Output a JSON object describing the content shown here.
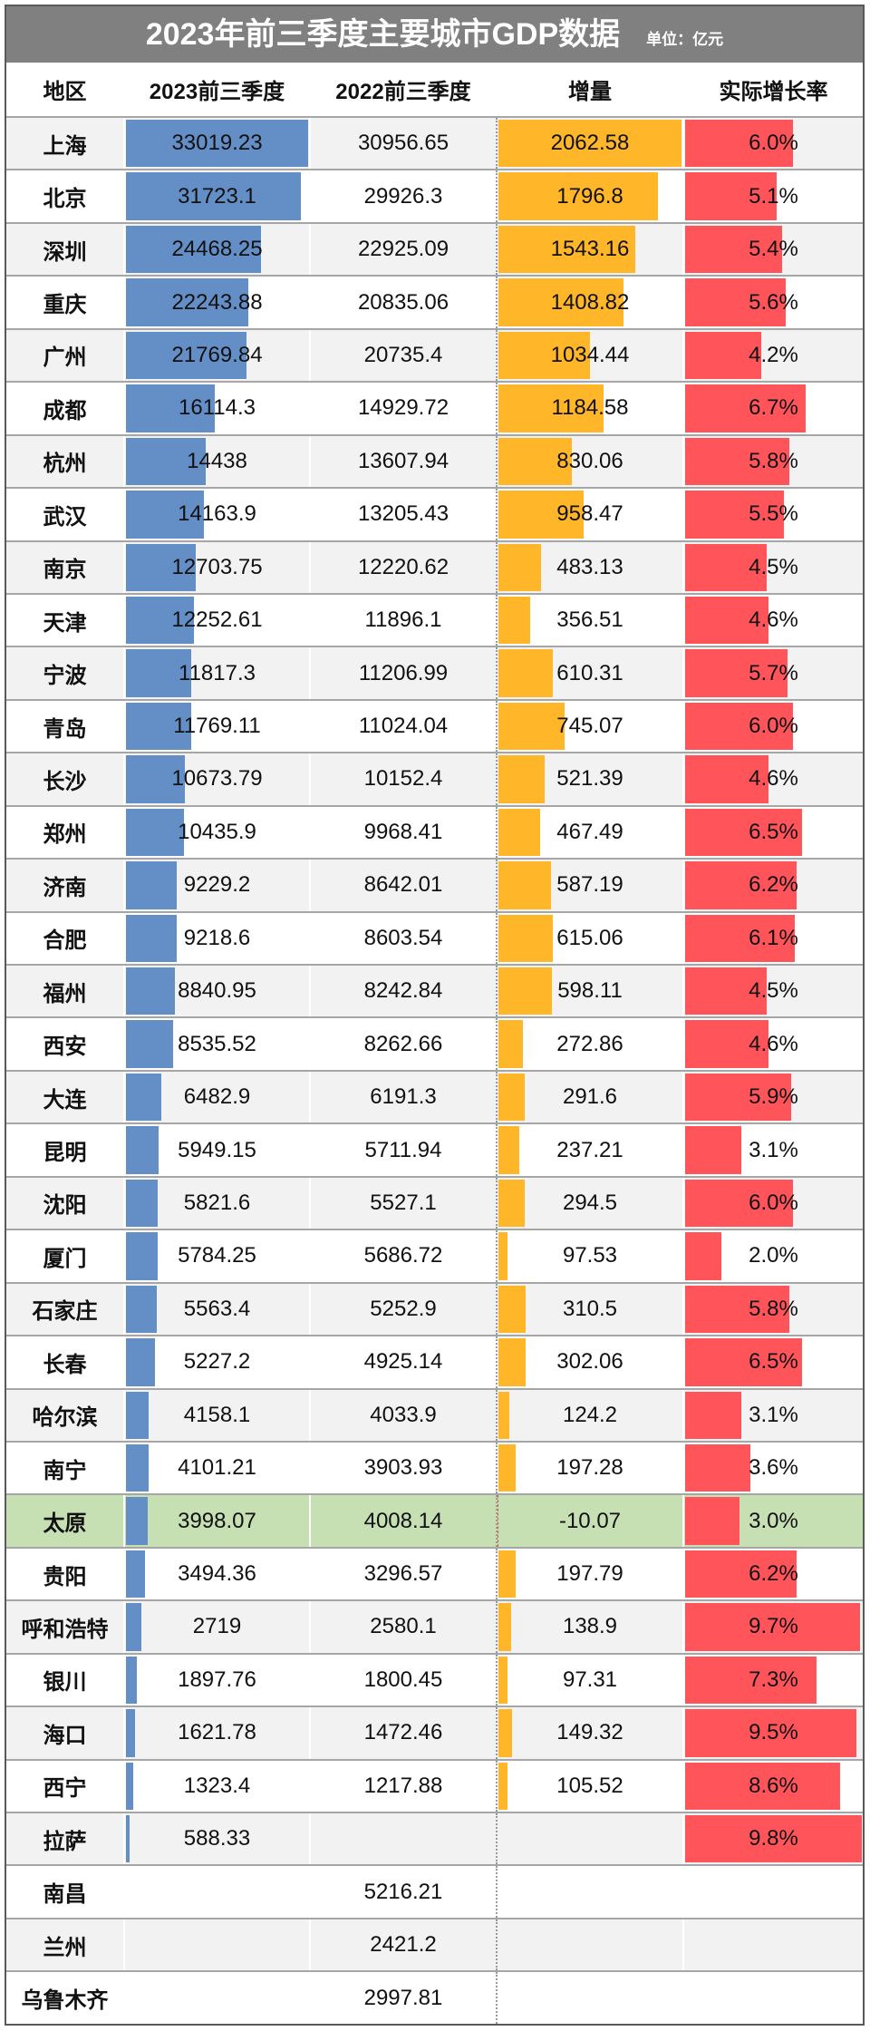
{
  "colors": {
    "title_bg": "#808080",
    "bar_2023": "#638EC6",
    "bar_increase": "#FFB628",
    "bar_growth": "#FF555A",
    "row_alt": "#F2F2F2",
    "highlight": "#C6E0B4",
    "grid_line": "#A6A6A6",
    "frame": "#595959"
  },
  "chart_data": {
    "type": "table",
    "title": "2023年前三季度主要城市GDP数据",
    "unit_label": "单位：亿元",
    "columns": [
      "地区",
      "2023前三季度",
      "2022前三季度",
      "增量",
      "实际增长率"
    ],
    "data_bars": {
      "gdp_2023": "#638EC6",
      "increase": "#FFB628",
      "growth": "#FF555A"
    },
    "rows": [
      {
        "city": "上海",
        "gdp_2023": 33019.23,
        "gdp_2022": 30956.65,
        "increase": 2062.58,
        "growth": "6.0%"
      },
      {
        "city": "北京",
        "gdp_2023": 31723.1,
        "gdp_2022": 29926.3,
        "increase": 1796.8,
        "growth": "5.1%"
      },
      {
        "city": "深圳",
        "gdp_2023": 24468.25,
        "gdp_2022": 22925.09,
        "increase": 1543.16,
        "growth": "5.4%"
      },
      {
        "city": "重庆",
        "gdp_2023": 22243.88,
        "gdp_2022": 20835.06,
        "increase": 1408.82,
        "growth": "5.6%"
      },
      {
        "city": "广州",
        "gdp_2023": 21769.84,
        "gdp_2022": 20735.4,
        "increase": 1034.44,
        "growth": "4.2%"
      },
      {
        "city": "成都",
        "gdp_2023": 16114.3,
        "gdp_2022": 14929.72,
        "increase": 1184.58,
        "growth": "6.7%"
      },
      {
        "city": "杭州",
        "gdp_2023": 14438,
        "gdp_2022": 13607.94,
        "increase": 830.06,
        "growth": "5.8%"
      },
      {
        "city": "武汉",
        "gdp_2023": 14163.9,
        "gdp_2022": 13205.43,
        "increase": 958.47,
        "growth": "5.5%"
      },
      {
        "city": "南京",
        "gdp_2023": 12703.75,
        "gdp_2022": 12220.62,
        "increase": 483.13,
        "growth": "4.5%"
      },
      {
        "city": "天津",
        "gdp_2023": 12252.61,
        "gdp_2022": 11896.1,
        "increase": 356.51,
        "growth": "4.6%"
      },
      {
        "city": "宁波",
        "gdp_2023": 11817.3,
        "gdp_2022": 11206.99,
        "increase": 610.31,
        "growth": "5.7%"
      },
      {
        "city": "青岛",
        "gdp_2023": 11769.11,
        "gdp_2022": 11024.04,
        "increase": 745.07,
        "growth": "6.0%"
      },
      {
        "city": "长沙",
        "gdp_2023": 10673.79,
        "gdp_2022": 10152.4,
        "increase": 521.39,
        "growth": "4.6%"
      },
      {
        "city": "郑州",
        "gdp_2023": 10435.9,
        "gdp_2022": 9968.41,
        "increase": 467.49,
        "growth": "6.5%"
      },
      {
        "city": "济南",
        "gdp_2023": 9229.2,
        "gdp_2022": 8642.01,
        "increase": 587.19,
        "growth": "6.2%"
      },
      {
        "city": "合肥",
        "gdp_2023": 9218.6,
        "gdp_2022": 8603.54,
        "increase": 615.06,
        "growth": "6.1%"
      },
      {
        "city": "福州",
        "gdp_2023": 8840.95,
        "gdp_2022": 8242.84,
        "increase": 598.11,
        "growth": "4.5%"
      },
      {
        "city": "西安",
        "gdp_2023": 8535.52,
        "gdp_2022": 8262.66,
        "increase": 272.86,
        "growth": "4.6%"
      },
      {
        "city": "大连",
        "gdp_2023": 6482.9,
        "gdp_2022": 6191.3,
        "increase": 291.6,
        "growth": "5.9%"
      },
      {
        "city": "昆明",
        "gdp_2023": 5949.15,
        "gdp_2022": 5711.94,
        "increase": 237.21,
        "growth": "3.1%"
      },
      {
        "city": "沈阳",
        "gdp_2023": 5821.6,
        "gdp_2022": 5527.1,
        "increase": 294.5,
        "growth": "6.0%"
      },
      {
        "city": "厦门",
        "gdp_2023": 5784.25,
        "gdp_2022": 5686.72,
        "increase": 97.53,
        "growth": "2.0%"
      },
      {
        "city": "石家庄",
        "gdp_2023": 5563.4,
        "gdp_2022": 5252.9,
        "increase": 310.5,
        "growth": "5.8%"
      },
      {
        "city": "长春",
        "gdp_2023": 5227.2,
        "gdp_2022": 4925.14,
        "increase": 302.06,
        "growth": "6.5%"
      },
      {
        "city": "哈尔滨",
        "gdp_2023": 4158.1,
        "gdp_2022": 4033.9,
        "increase": 124.2,
        "growth": "3.1%"
      },
      {
        "city": "南宁",
        "gdp_2023": 4101.21,
        "gdp_2022": 3903.93,
        "increase": 197.28,
        "growth": "3.6%"
      },
      {
        "city": "太原",
        "gdp_2023": 3998.07,
        "gdp_2022": 4008.14,
        "increase": -10.07,
        "growth": "3.0%",
        "highlight": true
      },
      {
        "city": "贵阳",
        "gdp_2023": 3494.36,
        "gdp_2022": 3296.57,
        "increase": 197.79,
        "growth": "6.2%"
      },
      {
        "city": "呼和浩特",
        "gdp_2023": 2719,
        "gdp_2022": 2580.1,
        "increase": 138.9,
        "growth": "9.7%"
      },
      {
        "city": "银川",
        "gdp_2023": 1897.76,
        "gdp_2022": 1800.45,
        "increase": 97.31,
        "growth": "7.3%"
      },
      {
        "city": "海口",
        "gdp_2023": 1621.78,
        "gdp_2022": 1472.46,
        "increase": 149.32,
        "growth": "9.5%"
      },
      {
        "city": "西宁",
        "gdp_2023": 1323.4,
        "gdp_2022": 1217.88,
        "increase": 105.52,
        "growth": "8.6%"
      },
      {
        "city": "拉萨",
        "gdp_2023": 588.33,
        "gdp_2022": null,
        "increase": null,
        "growth": "9.8%"
      },
      {
        "city": "南昌",
        "gdp_2023": null,
        "gdp_2022": 5216.21,
        "increase": null,
        "growth": null
      },
      {
        "city": "兰州",
        "gdp_2023": null,
        "gdp_2022": 2421.2,
        "increase": null,
        "growth": null
      },
      {
        "city": "乌鲁木齐",
        "gdp_2023": null,
        "gdp_2022": 2997.81,
        "increase": null,
        "growth": null
      }
    ]
  }
}
